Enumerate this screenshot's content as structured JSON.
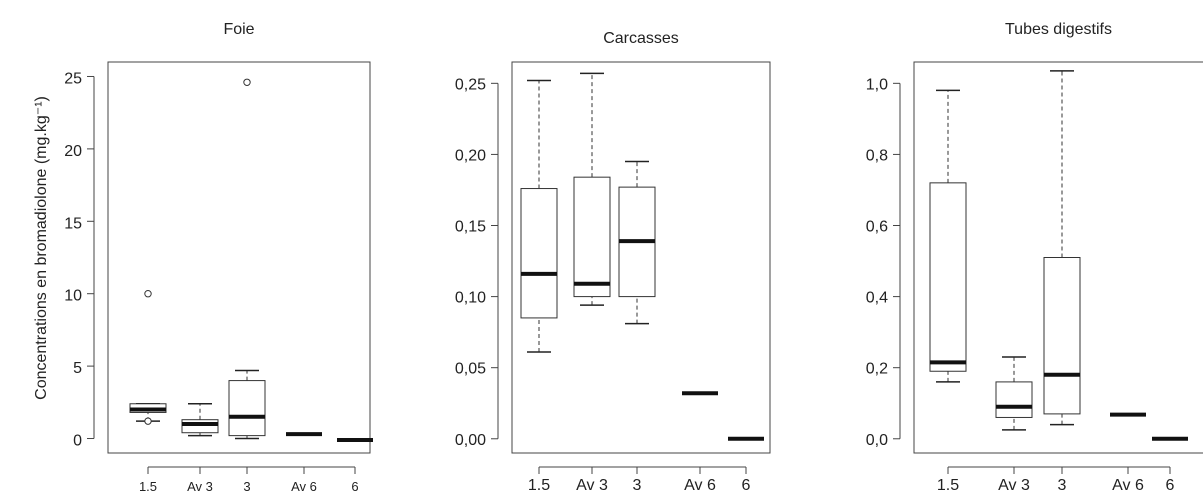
{
  "figure": {
    "ylabel": "Concentrations en bromadiolone (mg.kg⁻¹)"
  },
  "chart_data": [
    {
      "type": "box",
      "title": "Foie",
      "categories": [
        "1.5",
        "Av 3",
        "3",
        "Av 6",
        "6"
      ],
      "ylim": [
        -1,
        26
      ],
      "yticks": [
        0,
        5,
        10,
        15,
        20,
        25
      ],
      "ytick_labels": [
        "0",
        "5",
        "10",
        "15",
        "20",
        "25"
      ],
      "boxes": [
        {
          "min": 1.2,
          "q1": 1.8,
          "median": 2.0,
          "q3": 2.4,
          "max": 2.4,
          "outliers": [
            10.0,
            1.2
          ]
        },
        {
          "min": 0.2,
          "q1": 0.4,
          "median": 1.0,
          "q3": 1.3,
          "max": 2.4,
          "outliers": []
        },
        {
          "min": 0.0,
          "q1": 0.2,
          "median": 1.5,
          "q3": 4.0,
          "max": 4.7,
          "outliers": [
            24.6
          ]
        },
        {
          "min": 0.3,
          "q1": 0.3,
          "median": 0.3,
          "q3": 0.3,
          "max": 0.3,
          "outliers": []
        },
        {
          "min": -0.1,
          "q1": -0.1,
          "median": -0.1,
          "q3": -0.1,
          "max": -0.1,
          "outliers": []
        }
      ]
    },
    {
      "type": "box",
      "title": "Carcasses",
      "categories": [
        "1.5",
        "Av 3",
        "3",
        "Av 6",
        "6"
      ],
      "ylim": [
        -0.01,
        0.265
      ],
      "yticks": [
        0,
        0.05,
        0.1,
        0.15,
        0.2,
        0.25
      ],
      "ytick_labels": [
        "0,00",
        "0,05",
        "0,10",
        "0,15",
        "0,20",
        "0,25"
      ],
      "boxes": [
        {
          "min": 0.061,
          "q1": 0.085,
          "median": 0.116,
          "q3": 0.176,
          "max": 0.252,
          "outliers": []
        },
        {
          "min": 0.094,
          "q1": 0.1,
          "median": 0.109,
          "q3": 0.184,
          "max": 0.257,
          "outliers": []
        },
        {
          "min": 0.081,
          "q1": 0.1,
          "median": 0.139,
          "q3": 0.177,
          "max": 0.195,
          "outliers": []
        },
        {
          "min": 0.032,
          "q1": 0.032,
          "median": 0.032,
          "q3": 0.032,
          "max": 0.032,
          "outliers": []
        },
        {
          "min": 0.0,
          "q1": 0.0,
          "median": 0.0,
          "q3": 0.0,
          "max": 0.0,
          "outliers": []
        }
      ]
    },
    {
      "type": "box",
      "title": "Tubes digestifs",
      "categories": [
        "1.5",
        "Av 3",
        "3",
        "Av 6",
        "6"
      ],
      "ylim": [
        -0.04,
        1.06
      ],
      "yticks": [
        0,
        0.2,
        0.4,
        0.6,
        0.8,
        1.0
      ],
      "ytick_labels": [
        "0,0",
        "0,2",
        "0,4",
        "0,6",
        "0,8",
        "1,0"
      ],
      "boxes": [
        {
          "min": 0.16,
          "q1": 0.19,
          "median": 0.215,
          "q3": 0.72,
          "max": 0.98,
          "outliers": []
        },
        {
          "min": 0.025,
          "q1": 0.06,
          "median": 0.09,
          "q3": 0.16,
          "max": 0.23,
          "outliers": []
        },
        {
          "min": 0.04,
          "q1": 0.07,
          "median": 0.18,
          "q3": 0.51,
          "max": 1.035,
          "outliers": []
        },
        {
          "min": 0.068,
          "q1": 0.068,
          "median": 0.068,
          "q3": 0.068,
          "max": 0.068,
          "outliers": []
        },
        {
          "min": 0.0,
          "q1": 0.0,
          "median": 0.0,
          "q3": 0.0,
          "max": 0.0,
          "outliers": []
        }
      ]
    }
  ]
}
